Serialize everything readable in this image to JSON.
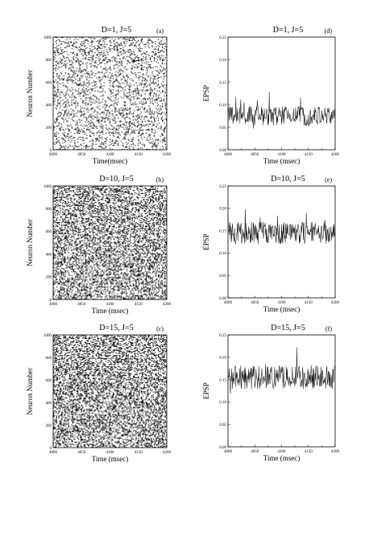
{
  "chart_data": [
    {
      "id": "a",
      "type": "scatter",
      "subtype": "raster",
      "title": "D=1, J=5",
      "tag": "(a)",
      "xlabel": "Time(msec)",
      "ylabel": "Neuron Number",
      "xlim": [
        4000,
        4200
      ],
      "ylim": [
        0,
        1000
      ],
      "xticks": [
        "4000",
        "4050",
        "4100",
        "4150",
        "4200"
      ],
      "yticks": [
        "0",
        "200",
        "400",
        "600",
        "800",
        "1000"
      ],
      "density": 0.35
    },
    {
      "id": "d",
      "type": "line",
      "title": "D=1, J=5",
      "tag": "(d)",
      "xlabel": "Time (msec)",
      "ylabel": "EPSP",
      "xlim": [
        4000,
        4200
      ],
      "ylim": [
        0,
        0.25
      ],
      "xticks": [
        "4000",
        "4050",
        "4100",
        "4150",
        "4200"
      ],
      "yticks": [
        "0.00",
        "0.05",
        "0.10",
        "0.15",
        "0.20",
        "0.25"
      ],
      "mean": 0.075,
      "amplitude": 0.022,
      "min": 0.02,
      "max": 0.15
    },
    {
      "id": "b",
      "type": "scatter",
      "subtype": "raster",
      "title": "D=10, J=5",
      "tag": "(b)",
      "xlabel": "Time (msec)",
      "ylabel": "Neuron Number",
      "xlim": [
        4000,
        4200
      ],
      "ylim": [
        0,
        1000
      ],
      "xticks": [
        "4000",
        "4050",
        "4100",
        "4150",
        "4200"
      ],
      "yticks": [
        "0",
        "200",
        "400",
        "600",
        "800",
        "1000"
      ],
      "density": 0.7
    },
    {
      "id": "e",
      "type": "line",
      "title": "D=10, J=5",
      "tag": "(e)",
      "xlabel": "Time (msec)",
      "ylabel": "EPSP",
      "xlim": [
        4000,
        4200
      ],
      "ylim": [
        0,
        0.25
      ],
      "xticks": [
        "4000",
        "4050",
        "4100",
        "4150",
        "4200"
      ],
      "yticks": [
        "0.00",
        "0.05",
        "0.10",
        "0.15",
        "0.20",
        "0.25"
      ],
      "mean": 0.145,
      "amplitude": 0.025,
      "min": 0.07,
      "max": 0.22
    },
    {
      "id": "c",
      "type": "scatter",
      "subtype": "raster",
      "title": "D=15, J=5",
      "tag": "(c)",
      "xlabel": "Time (msec)",
      "ylabel": "Neuron Number",
      "xlim": [
        4000,
        4200
      ],
      "ylim": [
        0,
        1000
      ],
      "xticks": [
        "4000",
        "4050",
        "4100",
        "4150",
        "4200"
      ],
      "yticks": [
        "0",
        "200",
        "400",
        "600",
        "800",
        "1000"
      ],
      "density": 0.75
    },
    {
      "id": "f",
      "type": "line",
      "title": "D=15, J=5",
      "tag": "(f)",
      "xlabel": "Time (msec)",
      "ylabel": "EPSP",
      "xlim": [
        4000,
        4200
      ],
      "ylim": [
        0,
        0.25
      ],
      "xticks": [
        "4000",
        "4050",
        "4100",
        "4150",
        "4200"
      ],
      "yticks": [
        "0.00",
        "0.05",
        "0.10",
        "0.15",
        "0.20",
        "0.25"
      ],
      "mean": 0.155,
      "amplitude": 0.027,
      "min": 0.08,
      "max": 0.245
    }
  ]
}
